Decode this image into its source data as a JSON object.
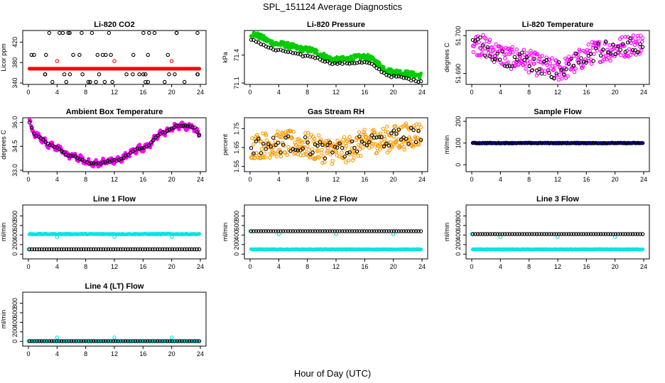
{
  "figure": {
    "title": "SPL_151124  Average Diagnostics",
    "xlabel": "Hour of Day (UTC)"
  },
  "chart_data": [
    {
      "id": "co2",
      "type": "scatter",
      "title": "Li-820 CO2",
      "ylabel": "Licor ppm",
      "xlim": [
        0,
        24
      ],
      "ylim": [
        340,
        440
      ],
      "yticks": [
        340,
        380,
        420
      ],
      "xticks": [
        0,
        4,
        8,
        12,
        16,
        20,
        24
      ],
      "series": [
        {
          "color": "#ff0000",
          "marker": "dot",
          "pattern": "flat",
          "y0": 368,
          "y1": 368,
          "n": 140
        },
        {
          "color": "#000000",
          "marker": "circle",
          "pattern": "levels",
          "levels": [
            438,
            395,
            357,
            342
          ],
          "n": 110
        },
        {
          "color": "#ff0000",
          "marker": "circle",
          "pattern": "points",
          "x": [
            4,
            12,
            20
          ],
          "y": [
            383,
            383,
            383
          ]
        }
      ]
    },
    {
      "id": "pressure",
      "type": "scatter",
      "title": "Li-820 Pressure",
      "ylabel": "kPa",
      "xlim": [
        0,
        24
      ],
      "ylim": [
        71.1,
        71.65
      ],
      "yticks": [
        71.1,
        71.4
      ],
      "xticks": [
        0,
        4,
        8,
        12,
        16,
        20,
        24
      ],
      "series": [
        {
          "color": "#00cc00",
          "marker": "dot",
          "pattern": "curve",
          "knots": [
            [
              0,
              71.63
            ],
            [
              4,
              71.52
            ],
            [
              8,
              71.46
            ],
            [
              12,
              71.35
            ],
            [
              16,
              71.38
            ],
            [
              20,
              71.22
            ],
            [
              24,
              71.18
            ]
          ],
          "noise": 0.03,
          "n": 260
        },
        {
          "color": "#000000",
          "marker": "circle",
          "pattern": "curve",
          "knots": [
            [
              0,
              71.56
            ],
            [
              4,
              71.45
            ],
            [
              8,
              71.39
            ],
            [
              12,
              71.31
            ],
            [
              16,
              71.32
            ],
            [
              20,
              71.17
            ],
            [
              24,
              71.12
            ]
          ],
          "noise": 0.01,
          "n": 70
        }
      ]
    },
    {
      "id": "licor_temp",
      "type": "scatter",
      "title": "Li-820 Temperature",
      "ylabel": "degrees C",
      "xlim": [
        0,
        24
      ],
      "ylim": [
        51.6875,
        51.701
      ],
      "yticks": [
        51.69,
        51.7
      ],
      "yticklabels": [
        "51.690",
        "51.700"
      ],
      "xticks": [
        0,
        4,
        8,
        12,
        16,
        20,
        24
      ],
      "series": [
        {
          "color": "#ff00ff",
          "marker": "circle",
          "pattern": "curve",
          "knots": [
            [
              0,
              51.698
            ],
            [
              6,
              51.694
            ],
            [
              12,
              51.691
            ],
            [
              18,
              51.696
            ],
            [
              24,
              51.698
            ]
          ],
          "noise": 0.003,
          "n": 280
        },
        {
          "color": "#000000",
          "marker": "circle",
          "pattern": "curve",
          "knots": [
            [
              0,
              51.698
            ],
            [
              6,
              51.694
            ],
            [
              12,
              51.691
            ],
            [
              18,
              51.696
            ],
            [
              24,
              51.698
            ]
          ],
          "noise": 0.0025,
          "n": 70
        }
      ]
    },
    {
      "id": "ambient_temp",
      "type": "scatter",
      "title": "Ambient Box Temperature",
      "ylabel": "degrees C",
      "xlim": [
        0,
        24
      ],
      "ylim": [
        33.0,
        36.2
      ],
      "yticks": [
        33.0,
        34.5,
        36.0
      ],
      "yticklabels": [
        "33.0",
        "34.5",
        "36.0"
      ],
      "xticks": [
        0,
        4,
        8,
        12,
        16,
        20,
        24
      ],
      "series": [
        {
          "color": "#ff00ff",
          "marker": "dot",
          "pattern": "curve",
          "knots": [
            [
              0,
              36.0
            ],
            [
              1,
              35.2
            ],
            [
              3,
              34.6
            ],
            [
              6,
              33.9
            ],
            [
              9,
              33.4
            ],
            [
              12,
              33.6
            ],
            [
              16,
              34.4
            ],
            [
              19,
              35.4
            ],
            [
              21,
              35.8
            ],
            [
              23,
              35.7
            ],
            [
              24,
              35.2
            ]
          ],
          "noise": 0.15,
          "wave": 0.12,
          "n": 320
        },
        {
          "color": "#000000",
          "marker": "circle",
          "pattern": "curve",
          "knots": [
            [
              0,
              36.0
            ],
            [
              1,
              35.2
            ],
            [
              3,
              34.6
            ],
            [
              6,
              33.9
            ],
            [
              9,
              33.4
            ],
            [
              12,
              33.6
            ],
            [
              16,
              34.4
            ],
            [
              19,
              35.4
            ],
            [
              21,
              35.8
            ],
            [
              23,
              35.7
            ],
            [
              24,
              35.2
            ]
          ],
          "noise": 0.05,
          "n": 75
        }
      ]
    },
    {
      "id": "rh",
      "type": "scatter",
      "title": "Gas Stream RH",
      "ylabel": "percent",
      "xlim": [
        0,
        24
      ],
      "ylim": [
        1.53,
        1.8
      ],
      "yticks": [
        1.55,
        1.65,
        1.75
      ],
      "yticklabels": [
        "1.55",
        "1.65",
        "1.75"
      ],
      "xticks": [
        0,
        4,
        8,
        12,
        16,
        20,
        24
      ],
      "series": [
        {
          "color": "#ff9900",
          "marker": "circle",
          "pattern": "curve",
          "knots": [
            [
              0,
              1.66
            ],
            [
              6,
              1.67
            ],
            [
              12,
              1.63
            ],
            [
              18,
              1.69
            ],
            [
              24,
              1.72
            ]
          ],
          "noise": 0.07,
          "n": 320
        },
        {
          "color": "#000000",
          "marker": "circle",
          "pattern": "curve",
          "knots": [
            [
              0,
              1.66
            ],
            [
              6,
              1.67
            ],
            [
              12,
              1.63
            ],
            [
              18,
              1.69
            ],
            [
              24,
              1.72
            ]
          ],
          "noise": 0.045,
          "n": 70
        }
      ]
    },
    {
      "id": "sample_flow",
      "type": "scatter",
      "title": "Sample Flow",
      "ylabel": "ml/min",
      "xlim": [
        0,
        24
      ],
      "ylim": [
        -25,
        210
      ],
      "yticks": [
        0,
        100,
        200
      ],
      "xticks": [
        0,
        4,
        8,
        12,
        16,
        20,
        24
      ],
      "series": [
        {
          "color": "#0000cc",
          "marker": "dot",
          "pattern": "flat",
          "y0": 100,
          "y1": 100,
          "noise": 2,
          "n": 200
        },
        {
          "color": "#000000",
          "marker": "circle",
          "pattern": "flat",
          "y0": 100,
          "y1": 100,
          "noise": 1,
          "n": 70
        }
      ]
    },
    {
      "id": "line1",
      "type": "scatter",
      "title": "Line 1 Flow",
      "ylabel": "ml/min",
      "xlim": [
        0,
        24
      ],
      "ylim": [
        -70,
        1000
      ],
      "yticks": [
        0,
        200,
        400,
        600,
        800
      ],
      "xticks": [
        0,
        4,
        8,
        12,
        16,
        20,
        24
      ],
      "series": [
        {
          "color": "#00e5e5",
          "marker": "dot",
          "pattern": "flat",
          "y0": 420,
          "y1": 420,
          "noise": 8,
          "n": 200
        },
        {
          "color": "#00e5e5",
          "marker": "circle",
          "pattern": "points",
          "x": [
            0,
            4,
            12,
            20
          ],
          "y": [
            100,
            360,
            360,
            360
          ]
        },
        {
          "color": "#000000",
          "marker": "circle",
          "pattern": "flat",
          "y0": 100,
          "y1": 100,
          "n": 70
        }
      ]
    },
    {
      "id": "line2",
      "type": "scatter",
      "title": "Line 2 Flow",
      "ylabel": "ml/min",
      "xlim": [
        0,
        24
      ],
      "ylim": [
        -70,
        1000
      ],
      "yticks": [
        0,
        200,
        400,
        600,
        800
      ],
      "xticks": [
        0,
        4,
        8,
        12,
        16,
        20,
        24
      ],
      "series": [
        {
          "color": "#00e5e5",
          "marker": "dot",
          "pattern": "flat",
          "y0": 100,
          "y1": 100,
          "noise": 6,
          "n": 200
        },
        {
          "color": "#00e5e5",
          "marker": "circle",
          "pattern": "points",
          "x": [
            0,
            4,
            12,
            20
          ],
          "y": [
            480,
            420,
            420,
            420
          ]
        },
        {
          "color": "#000000",
          "marker": "circle",
          "pattern": "flat",
          "y0": 480,
          "y1": 480,
          "n": 70
        }
      ]
    },
    {
      "id": "line3",
      "type": "scatter",
      "title": "Line 3 Flow",
      "ylabel": "ml/min",
      "xlim": [
        0,
        24
      ],
      "ylim": [
        -70,
        1000
      ],
      "yticks": [
        0,
        200,
        400,
        600,
        800
      ],
      "xticks": [
        0,
        4,
        8,
        12,
        16,
        20,
        24
      ],
      "series": [
        {
          "color": "#00e5e5",
          "marker": "dot",
          "pattern": "flat",
          "y0": 100,
          "y1": 100,
          "noise": 6,
          "n": 200
        },
        {
          "color": "#00e5e5",
          "marker": "circle",
          "pattern": "points",
          "x": [
            0,
            4,
            12,
            20
          ],
          "y": [
            420,
            360,
            360,
            360
          ]
        },
        {
          "color": "#000000",
          "marker": "circle",
          "pattern": "flat",
          "y0": 420,
          "y1": 420,
          "n": 70
        }
      ]
    },
    {
      "id": "line4",
      "type": "scatter",
      "title": "Line 4 (LT) Flow",
      "ylabel": "ml/min",
      "xlim": [
        0,
        24
      ],
      "ylim": [
        -70,
        1000
      ],
      "yticks": [
        0,
        200,
        400,
        600,
        800
      ],
      "xticks": [
        0,
        4,
        8,
        12,
        16,
        20,
        24
      ],
      "series": [
        {
          "color": "#00e5e5",
          "marker": "dot",
          "pattern": "flat",
          "y0": 5,
          "y1": 5,
          "n": 200
        },
        {
          "color": "#00e5e5",
          "marker": "circle",
          "pattern": "points",
          "x": [
            0,
            4,
            12,
            20
          ],
          "y": [
            5,
            80,
            80,
            80
          ]
        },
        {
          "color": "#000000",
          "marker": "circle",
          "pattern": "flat",
          "y0": 5,
          "y1": 5,
          "n": 70
        }
      ]
    }
  ]
}
